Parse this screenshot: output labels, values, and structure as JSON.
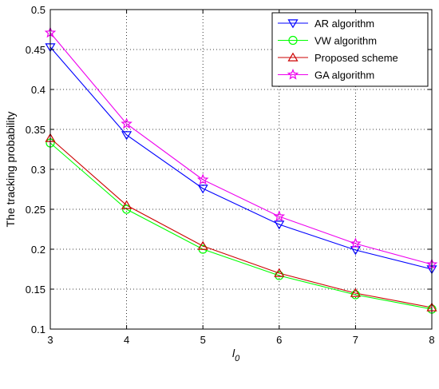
{
  "chart_data": {
    "type": "line",
    "title": "",
    "xlabel": "l",
    "xlabel_sub": "0",
    "ylabel": "The tracking probability",
    "x": [
      3,
      4,
      5,
      6,
      7,
      8
    ],
    "xlim": [
      3,
      8
    ],
    "ylim": [
      0.1,
      0.5
    ],
    "xticks": [
      "3",
      "4",
      "5",
      "6",
      "7",
      "8"
    ],
    "yticks": [
      "0.1",
      "0.15",
      "0.2",
      "0.25",
      "0.3",
      "0.35",
      "0.4",
      "0.45",
      "0.5"
    ],
    "grid": true,
    "legend_position": "top-right",
    "series": [
      {
        "name": "AR algorithm",
        "color": "#0000ff",
        "marker": "triangle-down",
        "values": [
          0.453,
          0.343,
          0.276,
          0.231,
          0.199,
          0.175
        ]
      },
      {
        "name": "VW  algorithm",
        "color": "#00ff00",
        "marker": "circle",
        "values": [
          0.333,
          0.25,
          0.2,
          0.167,
          0.143,
          0.125
        ]
      },
      {
        "name": "Proposed  scheme",
        "color": "#cc0000",
        "marker": "triangle-up",
        "values": [
          0.339,
          0.255,
          0.204,
          0.17,
          0.145,
          0.127
        ]
      },
      {
        "name": "GA  algorithm",
        "color": "#ee00ee",
        "marker": "star",
        "values": [
          0.471,
          0.357,
          0.287,
          0.241,
          0.207,
          0.181
        ]
      }
    ]
  }
}
